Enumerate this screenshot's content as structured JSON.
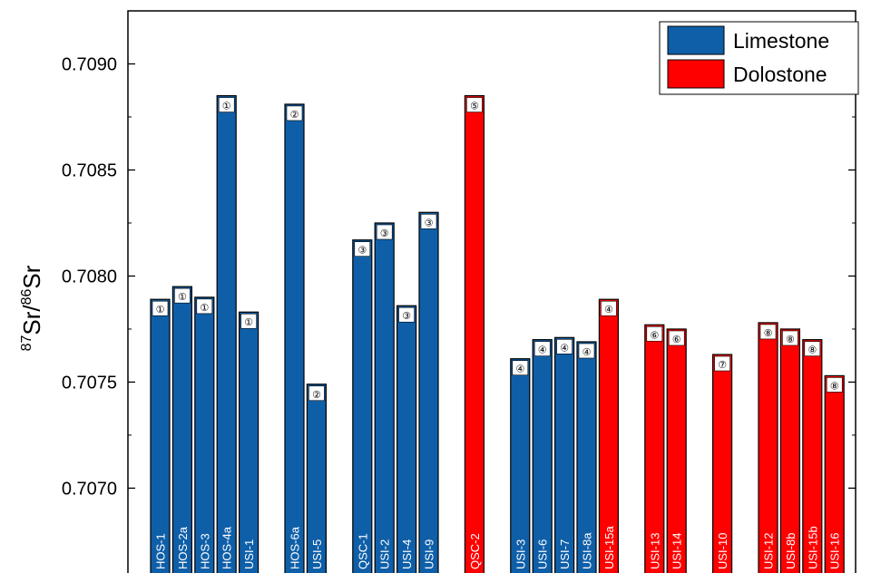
{
  "chart_data": {
    "type": "bar",
    "ylabel": {
      "sup1": "87",
      "main1": "Sr/",
      "sup2": "86",
      "main2": "Sr"
    },
    "ylim": [
      0.7066,
      0.70925
    ],
    "yticks": [
      0.707,
      0.7075,
      0.708,
      0.7085,
      0.709
    ],
    "ytick_labels": [
      "0.7070",
      "0.7075",
      "0.7080",
      "0.7085",
      "0.7090"
    ],
    "grid": false,
    "legend_position": "top-right",
    "colors": {
      "Limestone": "#0f5fa8",
      "Dolostone": "#ff0000"
    },
    "legend": [
      {
        "name": "Limestone",
        "color": "#0f5fa8"
      },
      {
        "name": "Dolostone",
        "color": "#ff0000"
      }
    ],
    "groups": [
      {
        "bars": [
          {
            "label": "HOS-1",
            "value": 0.70789,
            "type": "Limestone",
            "marker": "①"
          },
          {
            "label": "HOS-2a",
            "value": 0.70795,
            "type": "Limestone",
            "marker": "①"
          },
          {
            "label": "HOS-3",
            "value": 0.7079,
            "type": "Limestone",
            "marker": "①"
          },
          {
            "label": "HOS-4a",
            "value": 0.70885,
            "type": "Limestone",
            "marker": "①"
          },
          {
            "label": "USI-1",
            "value": 0.70783,
            "type": "Limestone",
            "marker": "①"
          }
        ]
      },
      {
        "bars": [
          {
            "label": "HOS-6a",
            "value": 0.70881,
            "type": "Limestone",
            "marker": "②"
          },
          {
            "label": "USI-5",
            "value": 0.70749,
            "type": "Limestone",
            "marker": "②"
          }
        ]
      },
      {
        "bars": [
          {
            "label": "QSC-1",
            "value": 0.70817,
            "type": "Limestone",
            "marker": "③"
          },
          {
            "label": "USI-2",
            "value": 0.70825,
            "type": "Limestone",
            "marker": "③"
          },
          {
            "label": "USI-4",
            "value": 0.70786,
            "type": "Limestone",
            "marker": "③"
          },
          {
            "label": "USI-9",
            "value": 0.7083,
            "type": "Limestone",
            "marker": "③"
          }
        ]
      },
      {
        "bars": [
          {
            "label": "QSC-2",
            "value": 0.70885,
            "type": "Dolostone",
            "marker": "⑤"
          }
        ]
      },
      {
        "bars": [
          {
            "label": "USI-3",
            "value": 0.70761,
            "type": "Limestone",
            "marker": "④"
          },
          {
            "label": "USI-6",
            "value": 0.7077,
            "type": "Limestone",
            "marker": "④"
          },
          {
            "label": "USI-7",
            "value": 0.70771,
            "type": "Limestone",
            "marker": "④"
          },
          {
            "label": "USI-8a",
            "value": 0.70769,
            "type": "Limestone",
            "marker": "④"
          },
          {
            "label": "USI-15a",
            "value": 0.70789,
            "type": "Dolostone",
            "marker": "④"
          }
        ]
      },
      {
        "bars": [
          {
            "label": "USI-13",
            "value": 0.70777,
            "type": "Dolostone",
            "marker": "⑥"
          },
          {
            "label": "USI-14",
            "value": 0.70775,
            "type": "Dolostone",
            "marker": "⑥"
          }
        ]
      },
      {
        "bars": [
          {
            "label": "USI-10",
            "value": 0.70763,
            "type": "Dolostone",
            "marker": "⑦"
          }
        ]
      },
      {
        "bars": [
          {
            "label": "USI-12",
            "value": 0.70778,
            "type": "Dolostone",
            "marker": "⑧"
          },
          {
            "label": "USI-8b",
            "value": 0.70775,
            "type": "Dolostone",
            "marker": "⑧"
          },
          {
            "label": "USI-15b",
            "value": 0.7077,
            "type": "Dolostone",
            "marker": "⑧"
          },
          {
            "label": "USI-16",
            "value": 0.70753,
            "type": "Dolostone",
            "marker": "⑧"
          }
        ]
      }
    ]
  }
}
